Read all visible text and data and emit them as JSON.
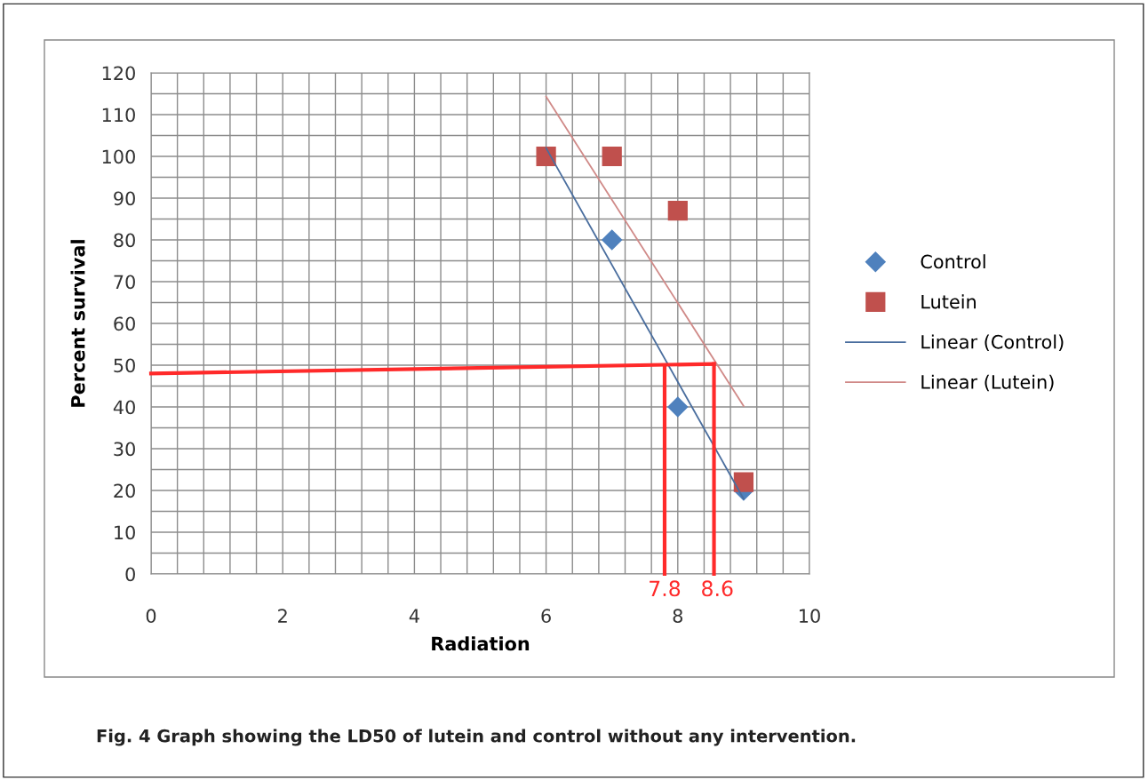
{
  "chart_data": {
    "type": "scatter",
    "xlabel": "Radiation",
    "ylabel": "Percent survival",
    "xlim": [
      0,
      10
    ],
    "ylim": [
      0,
      120
    ],
    "xticks": [
      0,
      {
        "value": 0.4,
        "label": null
      },
      {
        "value": 0.8,
        "label": null
      },
      {
        "value": 1.2,
        "label": null
      },
      {
        "value": 1.6,
        "label": null
      },
      2,
      {
        "value": 2.4,
        "label": null
      },
      {
        "value": 2.8,
        "label": null
      },
      {
        "value": 3.2,
        "label": null
      },
      {
        "value": 3.6,
        "label": null
      },
      4,
      {
        "value": 4.4,
        "label": null
      },
      {
        "value": 4.8,
        "label": null
      },
      {
        "value": 5.2,
        "label": null
      },
      {
        "value": 5.6,
        "label": null
      },
      6,
      {
        "value": 6.4,
        "label": null
      },
      {
        "value": 6.8,
        "label": null
      },
      {
        "value": 7.2,
        "label": null
      },
      {
        "value": 7.6,
        "label": null
      },
      8,
      {
        "value": 8.4,
        "label": null
      },
      {
        "value": 8.8,
        "label": null
      },
      {
        "value": 9.2,
        "label": null
      },
      {
        "value": 9.6,
        "label": null
      },
      10
    ],
    "yticks": [
      0,
      {
        "value": 5,
        "label": null
      },
      10,
      {
        "value": 15,
        "label": null
      },
      20,
      {
        "value": 25,
        "label": null
      },
      30,
      {
        "value": 35,
        "label": null
      },
      40,
      {
        "value": 45,
        "label": null
      },
      50,
      {
        "value": 55,
        "label": null
      },
      60,
      {
        "value": 65,
        "label": null
      },
      70,
      {
        "value": 75,
        "label": null
      },
      80,
      {
        "value": 85,
        "label": null
      },
      90,
      {
        "value": 95,
        "label": null
      },
      100,
      {
        "value": 105,
        "label": null
      },
      110,
      {
        "value": 115,
        "label": null
      },
      120
    ],
    "grid": true,
    "legend": "right",
    "series": [
      {
        "name": "Control",
        "marker": "diamond",
        "color": "#4f81bd",
        "x": [
          7,
          8,
          9
        ],
        "values": [
          80,
          40,
          20
        ]
      },
      {
        "name": "Lutein",
        "marker": "square",
        "color": "#c0504d",
        "x": [
          6,
          7,
          8,
          9
        ],
        "values": [
          100,
          100,
          87,
          22
        ]
      },
      {
        "name": "Linear (Control)",
        "type": "line",
        "color": "#4a6e9e",
        "x": [
          6,
          9
        ],
        "values": [
          102,
          18
        ]
      },
      {
        "name": "Linear (Lutein)",
        "type": "line",
        "color": "#d08a88",
        "x": [
          6,
          9
        ],
        "values": [
          114.3,
          40.2
        ]
      },
      {
        "type": "line",
        "color": "#ff2a2a",
        "x": [
          0,
          8.55
        ],
        "values": [
          48,
          50.3
        ]
      },
      {
        "type": "line",
        "color": "#ff2a2a",
        "x": [
          7.8,
          7.8
        ],
        "values": [
          0,
          50
        ]
      },
      {
        "type": "line",
        "color": "#ff2a2a",
        "x": [
          8.55,
          8.55
        ],
        "values": [
          0,
          50.3
        ]
      }
    ],
    "annotations": [
      {
        "text": "7.8",
        "x": 7.8,
        "y": 0
      },
      {
        "text": "8.6",
        "x": 8.6,
        "y": 0
      },
      "Fig. 4 Graph showing the LD50 of lutein and control without any intervention."
    ]
  }
}
